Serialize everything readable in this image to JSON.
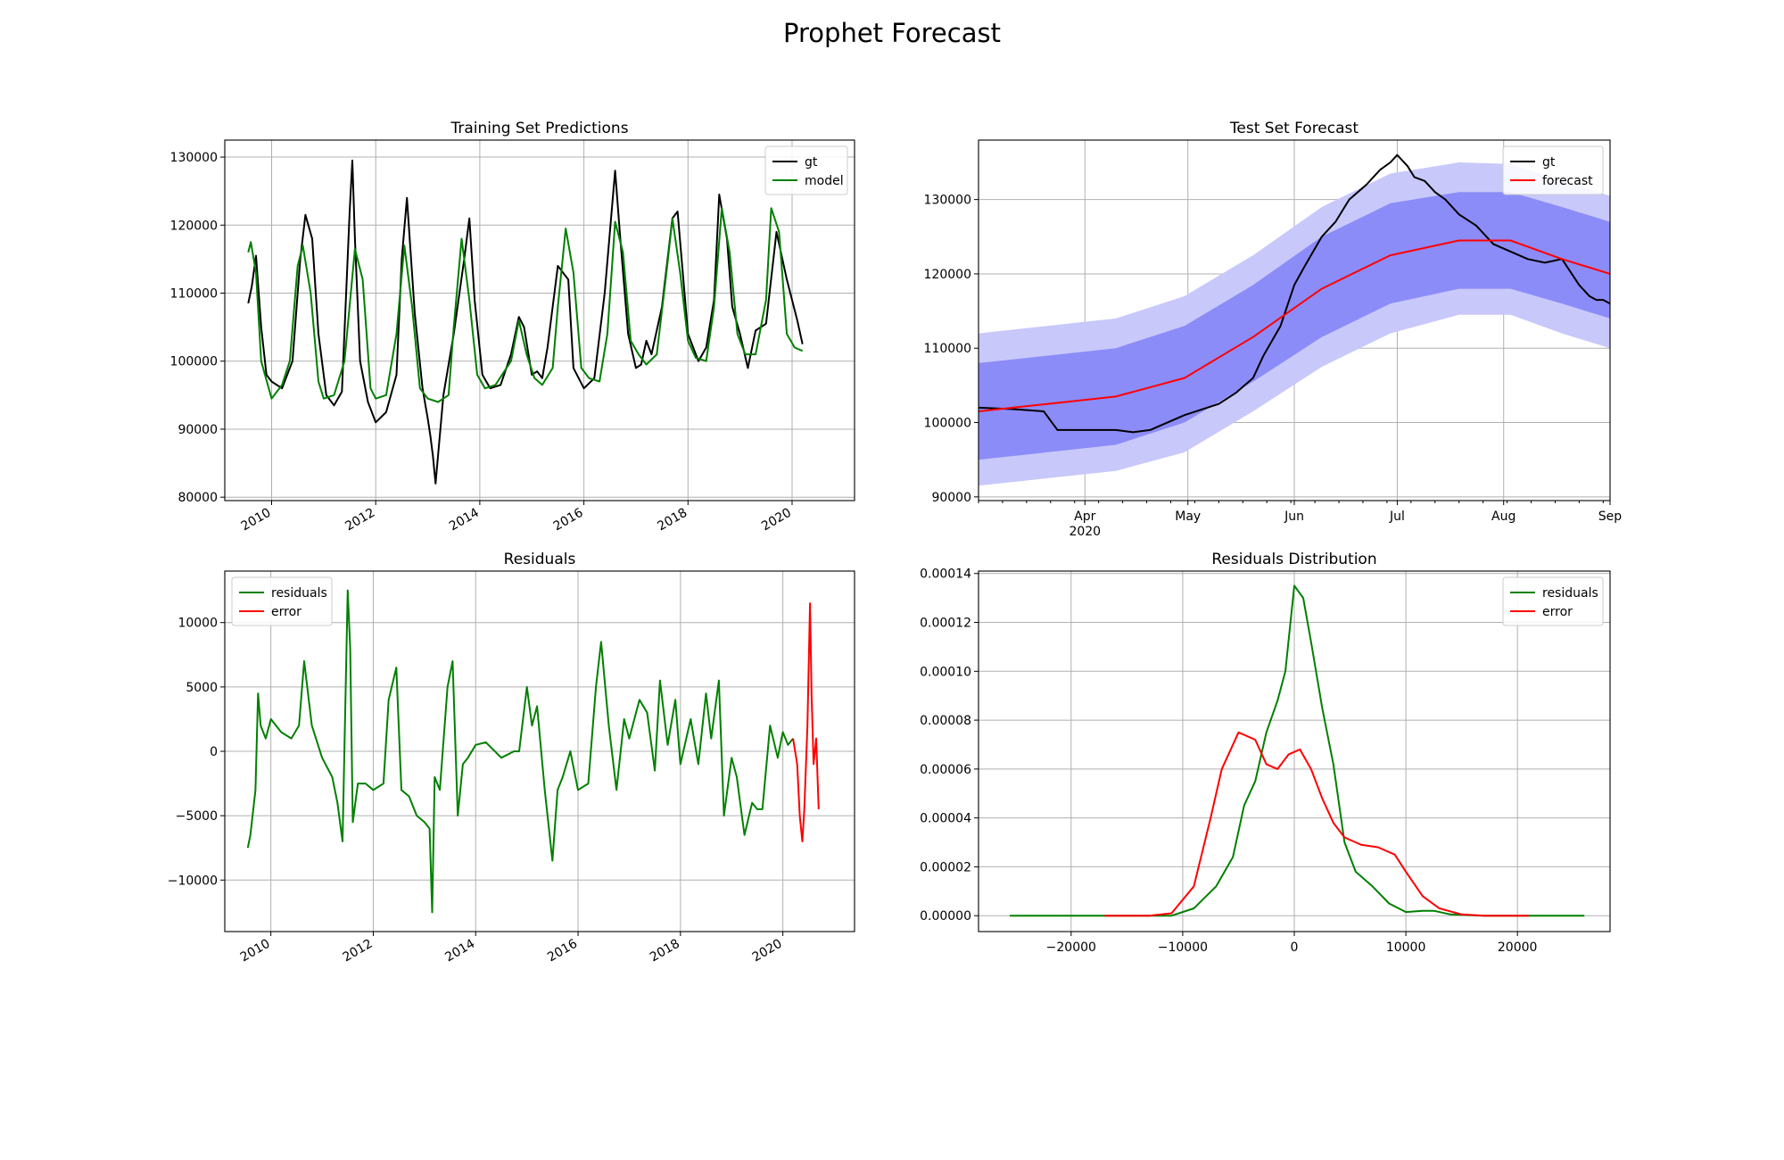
{
  "figure": {
    "suptitle": "Prophet Forecast"
  },
  "colors": {
    "gt": "#000000",
    "model": "#008000",
    "forecast": "#ff0000",
    "band_inner": "#8c8cf8",
    "band_outer": "#c8c8fb",
    "residuals": "#008000",
    "error": "#ff0000"
  },
  "chart_data": [
    {
      "id": "training",
      "type": "line",
      "title": "Training Set Predictions",
      "xlabel": "",
      "ylabel": "",
      "xlim": [
        2009.1,
        2021.2
      ],
      "ylim": [
        79500,
        132500
      ],
      "xticks": [
        2010,
        2012,
        2014,
        2016,
        2018,
        2020
      ],
      "xtick_labels": [
        "2010",
        "2012",
        "2014",
        "2016",
        "2018",
        "2020"
      ],
      "yticks": [
        80000,
        90000,
        100000,
        110000,
        120000,
        130000
      ],
      "ytick_labels": [
        "80000",
        "90000",
        "100000",
        "110000",
        "120000",
        "130000"
      ],
      "grid": true,
      "legend": "top-right",
      "series": [
        {
          "name": "gt",
          "color": "#000000",
          "x": [
            2009.55,
            2009.62,
            2009.7,
            2009.8,
            2009.9,
            2010.0,
            2010.2,
            2010.4,
            2010.55,
            2010.65,
            2010.78,
            2010.9,
            2011.05,
            2011.2,
            2011.35,
            2011.5,
            2011.55,
            2011.6,
            2011.7,
            2011.85,
            2012.0,
            2012.2,
            2012.4,
            2012.5,
            2012.6,
            2012.75,
            2012.9,
            2013.0,
            2013.05,
            2013.1,
            2013.15,
            2013.3,
            2013.5,
            2013.7,
            2013.8,
            2013.9,
            2014.05,
            2014.2,
            2014.4,
            2014.6,
            2014.75,
            2014.85,
            2015.0,
            2015.1,
            2015.2,
            2015.3,
            2015.5,
            2015.7,
            2015.8,
            2016.0,
            2016.2,
            2016.4,
            2016.6,
            2016.7,
            2016.85,
            2017.0,
            2017.1,
            2017.2,
            2017.3,
            2017.5,
            2017.7,
            2017.8,
            2018.0,
            2018.2,
            2018.35,
            2018.5,
            2018.6,
            2018.75,
            2018.85,
            2019.0,
            2019.15,
            2019.3,
            2019.5,
            2019.7,
            2019.9,
            2020.1,
            2020.2
          ],
          "y": [
            108500,
            111000,
            115500,
            105000,
            98000,
            97000,
            96000,
            100000,
            115000,
            121500,
            118000,
            104000,
            95000,
            93500,
            95500,
            122000,
            129500,
            118000,
            100000,
            94000,
            91000,
            92500,
            98000,
            115000,
            124000,
            107000,
            96000,
            91500,
            89000,
            86000,
            82000,
            95000,
            104000,
            115000,
            121000,
            109000,
            98000,
            96000,
            96500,
            101000,
            106500,
            105000,
            98000,
            98500,
            97500,
            102000,
            114000,
            112000,
            99000,
            96000,
            97500,
            110000,
            128000,
            118000,
            104000,
            99000,
            99500,
            103000,
            101000,
            108000,
            121000,
            122000,
            104000,
            100000,
            102000,
            109000,
            124500,
            118000,
            108000,
            104000,
            99000,
            104500,
            105500,
            119000,
            112000,
            106000,
            102500
          ]
        },
        {
          "name": "model",
          "color": "#008000",
          "x": [
            2009.55,
            2009.6,
            2009.7,
            2009.8,
            2010.0,
            2010.2,
            2010.35,
            2010.5,
            2010.6,
            2010.75,
            2010.9,
            2011.0,
            2011.2,
            2011.4,
            2011.6,
            2011.75,
            2011.9,
            2012.0,
            2012.2,
            2012.4,
            2012.55,
            2012.7,
            2012.85,
            2013.0,
            2013.2,
            2013.4,
            2013.5,
            2013.65,
            2013.8,
            2013.95,
            2014.1,
            2014.3,
            2014.6,
            2014.75,
            2014.9,
            2015.05,
            2015.2,
            2015.4,
            2015.5,
            2015.65,
            2015.8,
            2015.95,
            2016.1,
            2016.3,
            2016.45,
            2016.6,
            2016.75,
            2016.9,
            2017.05,
            2017.2,
            2017.4,
            2017.6,
            2017.7,
            2017.85,
            2018.0,
            2018.15,
            2018.35,
            2018.5,
            2018.65,
            2018.8,
            2018.95,
            2019.1,
            2019.3,
            2019.5,
            2019.6,
            2019.75,
            2019.9,
            2020.05,
            2020.2
          ],
          "y": [
            116000,
            117500,
            113000,
            100000,
            94500,
            96500,
            100000,
            114000,
            117000,
            110000,
            97000,
            94500,
            95000,
            100000,
            116500,
            112000,
            96000,
            94500,
            95000,
            104000,
            117000,
            108000,
            96000,
            94500,
            94000,
            95000,
            105000,
            118000,
            109000,
            98000,
            96000,
            96500,
            100000,
            106000,
            101000,
            97500,
            96500,
            99000,
            108000,
            119500,
            113000,
            99000,
            97500,
            97000,
            104000,
            120500,
            116000,
            103000,
            101000,
            99500,
            101000,
            114000,
            121000,
            113000,
            103000,
            100500,
            100000,
            108000,
            122500,
            116000,
            104000,
            101000,
            101000,
            109000,
            122500,
            119000,
            104000,
            102000,
            101500
          ]
        }
      ]
    },
    {
      "id": "test",
      "type": "line",
      "title": "Test Set Forecast",
      "xlabel": "",
      "ylabel": "",
      "x_unit": "days since 2020-03-01",
      "xlim": [
        0,
        184
      ],
      "ylim": [
        89500,
        138000
      ],
      "xticks": [
        31,
        61,
        92,
        122,
        153,
        184
      ],
      "xtick_labels": [
        "Apr",
        "May",
        "Jun",
        "Jul",
        "Aug",
        "Sep"
      ],
      "xtick_sublabel": "2020",
      "yticks": [
        90000,
        100000,
        110000,
        120000,
        130000
      ],
      "ytick_labels": [
        "90000",
        "100000",
        "110000",
        "120000",
        "130000"
      ],
      "grid": true,
      "legend": "top-right",
      "x": [
        0,
        20,
        40,
        60,
        80,
        100,
        120,
        140,
        155,
        170,
        184
      ],
      "bands": [
        {
          "name": "outer",
          "color": "#c8c8fb",
          "lower": [
            91500,
            92500,
            93500,
            96000,
            101500,
            107500,
            112000,
            114500,
            114500,
            112000,
            110000
          ],
          "upper": [
            112000,
            113000,
            114000,
            117000,
            122500,
            129000,
            133500,
            135000,
            134800,
            132500,
            130500
          ]
        },
        {
          "name": "inner",
          "color": "#8c8cf8",
          "lower": [
            95000,
            96000,
            97000,
            100000,
            105500,
            111500,
            116000,
            118000,
            118000,
            116000,
            114000
          ],
          "upper": [
            108000,
            109000,
            110000,
            113000,
            118500,
            125000,
            129500,
            131000,
            131000,
            129000,
            127000
          ]
        }
      ],
      "series": [
        {
          "name": "gt",
          "color": "#000000",
          "x": [
            0,
            10,
            19,
            23,
            30,
            40,
            45,
            50,
            60,
            70,
            75,
            80,
            83,
            88,
            92,
            95,
            100,
            104,
            108,
            113,
            117,
            120,
            122,
            125,
            127,
            130,
            133,
            136,
            140,
            145,
            150,
            155,
            160,
            165,
            170,
            175,
            178,
            180,
            182,
            184
          ],
          "y": [
            102000,
            101800,
            101500,
            99000,
            99000,
            99000,
            98700,
            99000,
            101000,
            102500,
            104000,
            106000,
            109000,
            113000,
            118500,
            121000,
            125000,
            127000,
            130000,
            132000,
            134000,
            135000,
            136000,
            134500,
            133000,
            132500,
            131000,
            130000,
            128000,
            126500,
            124000,
            123000,
            122000,
            121500,
            122000,
            118500,
            117000,
            116500,
            116500,
            116000
          ]
        },
        {
          "name": "forecast",
          "color": "#ff0000",
          "x": [
            0,
            20,
            40,
            60,
            80,
            100,
            120,
            140,
            155,
            170,
            184
          ],
          "y": [
            101500,
            102500,
            103500,
            106000,
            111500,
            118000,
            122500,
            124500,
            124500,
            122000,
            120000
          ]
        }
      ]
    },
    {
      "id": "residuals",
      "type": "line",
      "title": "Residuals",
      "xlabel": "",
      "ylabel": "",
      "xlim": [
        2009.1,
        2021.4
      ],
      "ylim": [
        -14000,
        14000
      ],
      "xticks": [
        2010,
        2012,
        2014,
        2016,
        2018,
        2020
      ],
      "xtick_labels": [
        "2010",
        "2012",
        "2014",
        "2016",
        "2018",
        "2020"
      ],
      "yticks": [
        -10000,
        -5000,
        0,
        5000,
        10000
      ],
      "ytick_labels": [
        "−10000",
        "−5000",
        "0",
        "5000",
        "10000"
      ],
      "grid": true,
      "legend": "top-left",
      "series": [
        {
          "name": "residuals",
          "color": "#008000",
          "x": [
            2009.55,
            2009.6,
            2009.7,
            2009.75,
            2009.8,
            2009.9,
            2010.0,
            2010.2,
            2010.4,
            2010.55,
            2010.65,
            2010.8,
            2011.0,
            2011.2,
            2011.3,
            2011.4,
            2011.5,
            2011.55,
            2011.6,
            2011.7,
            2011.85,
            2012.0,
            2012.2,
            2012.3,
            2012.45,
            2012.55,
            2012.7,
            2012.85,
            2013.0,
            2013.1,
            2013.15,
            2013.2,
            2013.3,
            2013.45,
            2013.55,
            2013.65,
            2013.75,
            2013.85,
            2014.0,
            2014.2,
            2014.5,
            2014.75,
            2014.85,
            2015.0,
            2015.1,
            2015.2,
            2015.35,
            2015.5,
            2015.6,
            2015.7,
            2015.85,
            2016.0,
            2016.2,
            2016.35,
            2016.45,
            2016.6,
            2016.75,
            2016.9,
            2017.0,
            2017.2,
            2017.35,
            2017.5,
            2017.6,
            2017.75,
            2017.9,
            2018.0,
            2018.2,
            2018.35,
            2018.5,
            2018.6,
            2018.75,
            2018.85,
            2019.0,
            2019.1,
            2019.25,
            2019.4,
            2019.5,
            2019.6,
            2019.75,
            2019.9,
            2020.0,
            2020.1,
            2020.2
          ],
          "y": [
            -7500,
            -6500,
            -3000,
            4500,
            2000,
            1000,
            2500,
            1500,
            1000,
            2000,
            7000,
            2000,
            -500,
            -2000,
            -4000,
            -7000,
            12500,
            8000,
            -5500,
            -2500,
            -2500,
            -3000,
            -2500,
            4000,
            6500,
            -3000,
            -3500,
            -5000,
            -5500,
            -6000,
            -12500,
            -2000,
            -3000,
            5000,
            7000,
            -5000,
            -1000,
            -500,
            500,
            700,
            -500,
            0,
            0,
            5000,
            2000,
            3500,
            -3000,
            -8500,
            -3000,
            -2000,
            0,
            -3000,
            -2500,
            5000,
            8500,
            2000,
            -3000,
            2500,
            1000,
            4000,
            3000,
            -1500,
            5500,
            500,
            4000,
            -1000,
            2500,
            -1000,
            4500,
            1000,
            5500,
            -5000,
            -500,
            -2000,
            -6500,
            -4000,
            -4500,
            -4500,
            2000,
            -500,
            1500,
            500,
            1000
          ]
        },
        {
          "name": "error",
          "color": "#ff0000",
          "x": [
            2020.2,
            2020.28,
            2020.33,
            2020.38,
            2020.42,
            2020.48,
            2020.53,
            2020.56,
            2020.6,
            2020.65,
            2020.7
          ],
          "y": [
            1000,
            -1000,
            -5000,
            -7000,
            -4500,
            2000,
            11500,
            4500,
            -1000,
            1000,
            -4500
          ]
        }
      ]
    },
    {
      "id": "distribution",
      "type": "line",
      "title": "Residuals Distribution",
      "xlabel": "",
      "ylabel": "",
      "xlim": [
        -28300,
        28300
      ],
      "ylim": [
        -6.5e-06,
        0.000141
      ],
      "xticks": [
        -20000,
        -10000,
        0,
        10000,
        20000
      ],
      "xtick_labels": [
        "−20000",
        "−10000",
        "0",
        "10000",
        "20000"
      ],
      "yticks": [
        0,
        2e-05,
        4e-05,
        6e-05,
        8e-05,
        0.0001,
        0.00012,
        0.00014
      ],
      "ytick_labels": [
        "0.00000",
        "0.00002",
        "0.00004",
        "0.00006",
        "0.00008",
        "0.00010",
        "0.00012",
        "0.00014"
      ],
      "grid": true,
      "legend": "top-right",
      "series": [
        {
          "name": "residuals",
          "color": "#008000",
          "x": [
            -25500,
            -15000,
            -11000,
            -9000,
            -7000,
            -5500,
            -4500,
            -3500,
            -2500,
            -1500,
            -800,
            0,
            800,
            1500,
            2500,
            3500,
            4500,
            5500,
            7000,
            8500,
            10000,
            11500,
            12500,
            14000,
            17000,
            26000
          ],
          "y": [
            0,
            0,
            0,
            3e-06,
            1.2e-05,
            2.4e-05,
            4.5e-05,
            5.5e-05,
            7.5e-05,
            8.8e-05,
            0.0001,
            0.000135,
            0.00013,
            0.000112,
            8.5e-05,
            6.2e-05,
            3e-05,
            1.8e-05,
            1.2e-05,
            5e-06,
            1.5e-06,
            2e-06,
            2e-06,
            5e-07,
            0,
            0
          ]
        },
        {
          "name": "error",
          "color": "#ff0000",
          "x": [
            -17000,
            -13000,
            -11000,
            -9000,
            -7500,
            -6500,
            -5000,
            -3500,
            -2500,
            -1500,
            -500,
            500,
            1500,
            2500,
            3500,
            4500,
            6000,
            7500,
            9000,
            10000,
            11500,
            13000,
            15000,
            17000,
            21000
          ],
          "y": [
            0,
            0,
            1e-06,
            1.2e-05,
            4e-05,
            6e-05,
            7.5e-05,
            7.2e-05,
            6.2e-05,
            6e-05,
            6.6e-05,
            6.8e-05,
            6e-05,
            4.8e-05,
            3.8e-05,
            3.2e-05,
            2.9e-05,
            2.8e-05,
            2.5e-05,
            1.8e-05,
            8e-06,
            3e-06,
            5e-07,
            0,
            0
          ]
        }
      ]
    }
  ]
}
